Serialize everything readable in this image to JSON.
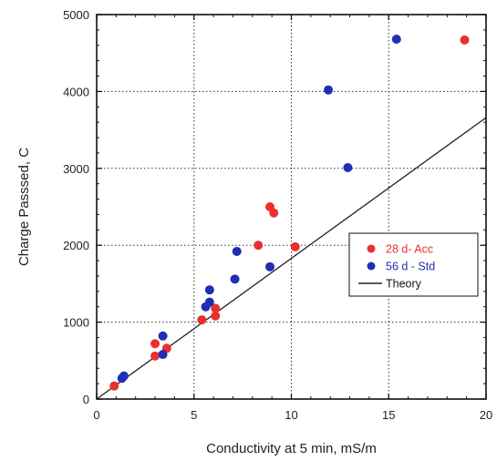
{
  "chart_data": {
    "type": "scatter",
    "title": "",
    "xlabel": "Conductivity at 5 min, mS/m",
    "ylabel": "Charge Passsed, C",
    "xlim": [
      0,
      20
    ],
    "ylim": [
      0,
      5000
    ],
    "xticks": [
      "0",
      "5",
      "10",
      "15",
      "20"
    ],
    "yticks": [
      "0",
      "1000",
      "2000",
      "3000",
      "4000",
      "5000"
    ],
    "grid": true,
    "legend_position": "center-right",
    "series": [
      {
        "name": "28 d- Acc",
        "color": "#e8312f",
        "marker": "circle",
        "points": [
          [
            0.9,
            170
          ],
          [
            3.0,
            560
          ],
          [
            3.0,
            720
          ],
          [
            3.6,
            660
          ],
          [
            5.4,
            1030
          ],
          [
            6.1,
            1080
          ],
          [
            6.1,
            1180
          ],
          [
            8.3,
            2000
          ],
          [
            8.9,
            2500
          ],
          [
            9.1,
            2420
          ],
          [
            10.2,
            1980
          ],
          [
            18.9,
            4670
          ]
        ]
      },
      {
        "name": "56 d - Std",
        "color": "#1f2fb4",
        "marker": "circle",
        "points": [
          [
            1.3,
            270
          ],
          [
            1.4,
            300
          ],
          [
            3.4,
            820
          ],
          [
            3.4,
            580
          ],
          [
            5.6,
            1200
          ],
          [
            5.8,
            1260
          ],
          [
            5.8,
            1420
          ],
          [
            7.1,
            1560
          ],
          [
            7.2,
            1920
          ],
          [
            8.9,
            1720
          ],
          [
            11.9,
            4020
          ],
          [
            12.9,
            3010
          ],
          [
            15.4,
            4680
          ]
        ]
      },
      {
        "name": "Theory",
        "color": "#222222",
        "marker": "line",
        "points": [
          [
            0,
            0
          ],
          [
            20,
            3660
          ]
        ]
      }
    ]
  }
}
